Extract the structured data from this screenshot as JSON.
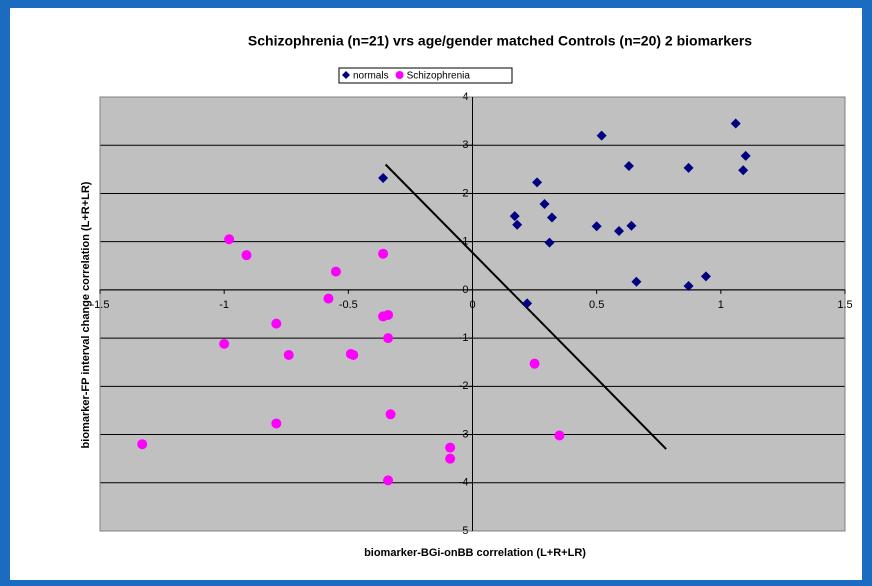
{
  "chart_data": {
    "type": "scatter",
    "title": "Schizophrenia (n=21) vrs age/gender matched Controls (n=20) 2 biomarkers",
    "xlabel": "biomarker-BGi-onBB correlation (L+R+LR)",
    "ylabel": "biomarker-FP interval change correlation (L+R+LR)",
    "xlim": [
      -1.5,
      1.5
    ],
    "ylim": [
      -5,
      4
    ],
    "xticks": [
      -1.5,
      -1,
      -0.5,
      0,
      0.5,
      1,
      1.5
    ],
    "yticks": [
      -5,
      -4,
      -3,
      -2,
      -1,
      0,
      1,
      2,
      3,
      4
    ],
    "grid": true,
    "legend": "top",
    "series": [
      {
        "name": "normals",
        "color": "#000080",
        "marker": "diamond",
        "x": [
          -0.36,
          0.52,
          1.06,
          1.1,
          1.09,
          0.26,
          0.63,
          0.87,
          0.17,
          0.18,
          0.29,
          0.32,
          0.31,
          0.5,
          0.59,
          0.64,
          0.66,
          0.87,
          0.94,
          0.22
        ],
        "values": [
          2.32,
          3.2,
          3.45,
          2.78,
          2.48,
          2.23,
          2.57,
          2.53,
          1.53,
          1.35,
          1.78,
          1.5,
          0.98,
          1.32,
          1.22,
          1.33,
          0.17,
          0.08,
          0.28,
          -0.28
        ]
      },
      {
        "name": "Schizophrenia",
        "color": "#ff00ff",
        "marker": "circle",
        "x": [
          -0.98,
          -0.91,
          -0.55,
          -0.36,
          -0.58,
          -0.79,
          -0.36,
          -0.34,
          -1.0,
          -0.74,
          -0.49,
          -0.34,
          0.25,
          -0.79,
          -0.33,
          -1.33,
          -0.09,
          -0.09,
          0.35,
          -0.34,
          -0.48
        ],
        "values": [
          1.05,
          0.72,
          0.38,
          0.75,
          -0.18,
          -0.7,
          -0.55,
          -0.52,
          -1.12,
          -1.35,
          -1.33,
          -1.0,
          -1.53,
          -2.77,
          -2.58,
          -3.2,
          -3.27,
          -3.5,
          -3.02,
          -3.95,
          -1.35
        ]
      }
    ],
    "lines": [
      {
        "color": "#000000",
        "x": [
          -0.35,
          0.78
        ],
        "values": [
          2.6,
          -3.3
        ]
      }
    ]
  }
}
